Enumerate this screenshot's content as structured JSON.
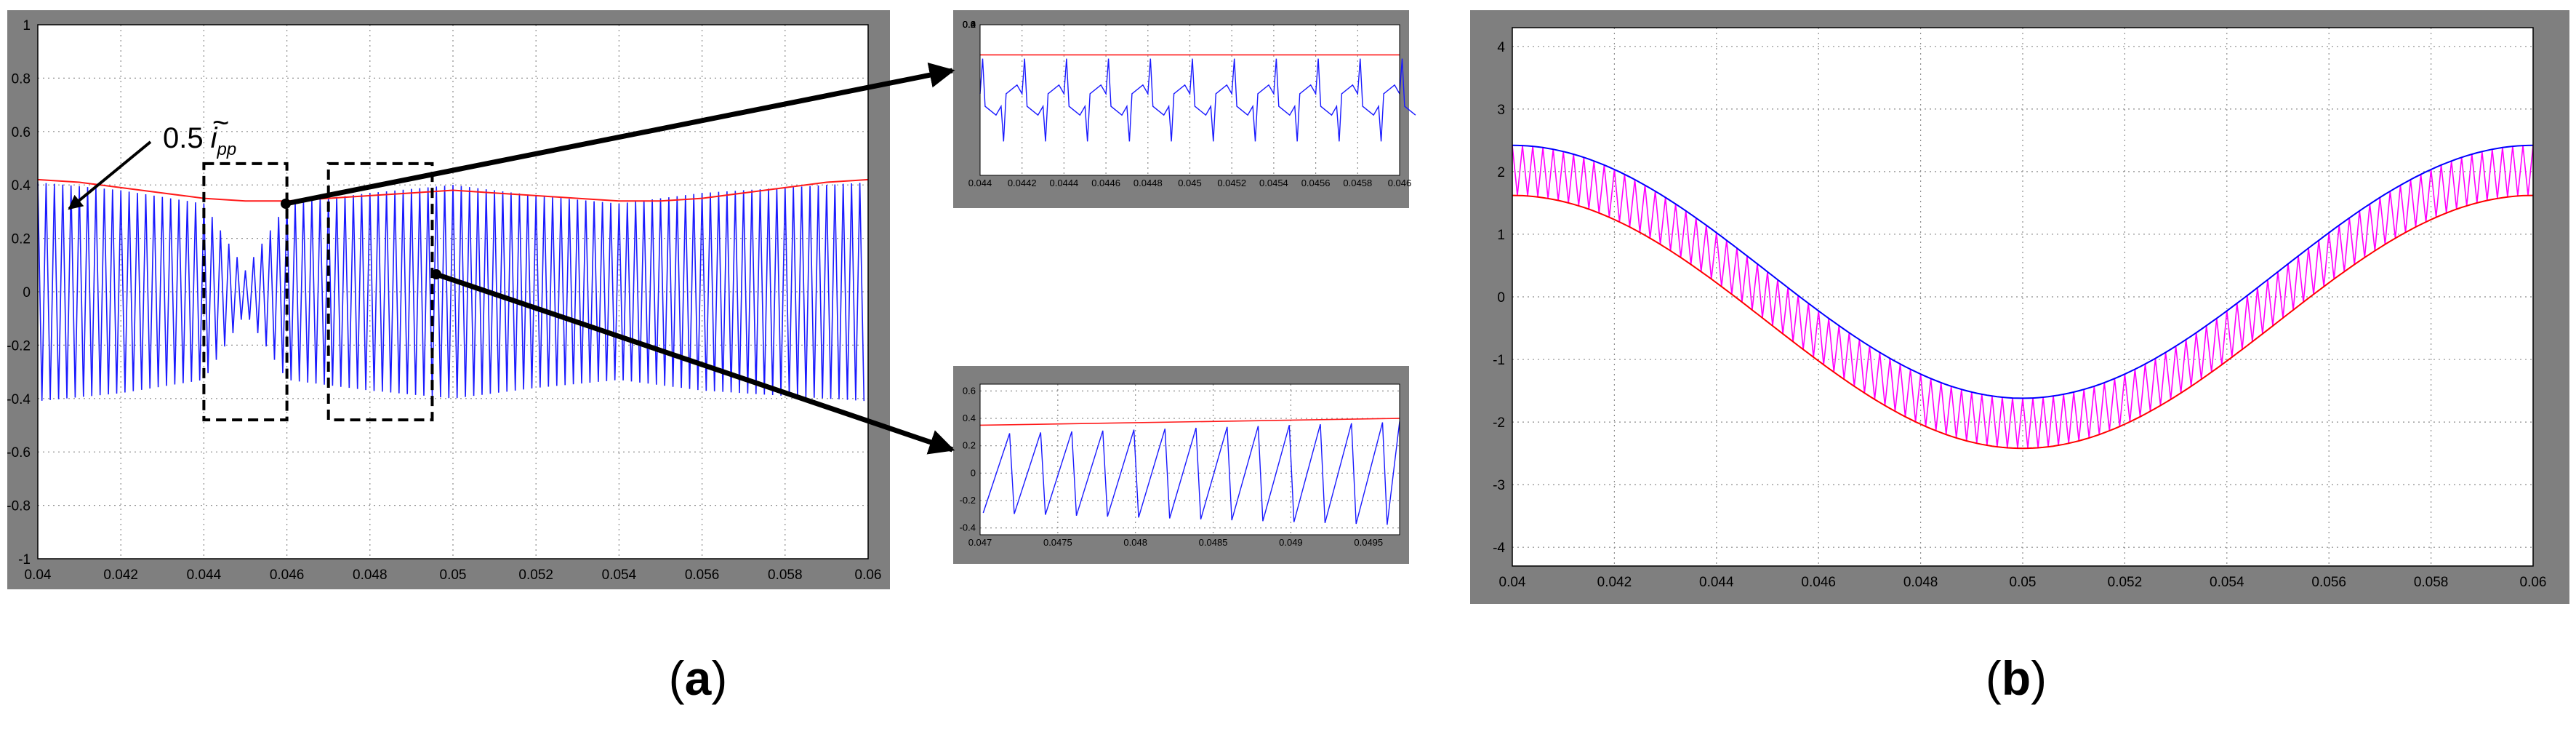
{
  "annotation": {
    "coef": "0.5",
    "symbol": "i",
    "tilde": "~",
    "sub": "pp"
  },
  "panel_labels": {
    "a_open": "(",
    "a": "a",
    "a_close": ")",
    "b_open": "(",
    "b": "b",
    "b_close": ")"
  },
  "colors": {
    "frame": "#7f7f7f",
    "ripple": "#1a1aff",
    "envelope": "#ff1a1a",
    "upper": "#0000ff",
    "lower": "#ff0000",
    "current": "#ff00ff",
    "grid": "#8c8c8c"
  },
  "chart_data": [
    {
      "id": "a-main",
      "type": "line",
      "title": "",
      "xlabel": "",
      "ylabel": "",
      "xlim": [
        0.04,
        0.06
      ],
      "ylim": [
        -1,
        1
      ],
      "grid": true,
      "xticks": [
        "0.04",
        "0.042",
        "0.044",
        "0.046",
        "0.048",
        "0.05",
        "0.052",
        "0.054",
        "0.056",
        "0.058",
        "0.06"
      ],
      "yticks": [
        "1",
        "0.8",
        "0.6",
        "0.4",
        "0.2",
        "0",
        "-0.2",
        "-0.4",
        "-0.6",
        "-0.8",
        "-1"
      ],
      "series": [
        {
          "role": "ripple",
          "x": [
            0.04,
            0.042,
            0.044,
            0.045,
            0.046,
            0.048,
            0.05,
            0.052,
            0.054,
            0.056,
            0.058,
            0.06
          ],
          "amplitude": [
            0.41,
            0.38,
            0.33,
            0.08,
            0.33,
            0.37,
            0.4,
            0.36,
            0.33,
            0.37,
            0.39,
            0.41
          ],
          "switching_period": 0.0002
        },
        {
          "role": "envelope",
          "x": [
            0.04,
            0.041,
            0.042,
            0.043,
            0.044,
            0.045,
            0.046,
            0.047,
            0.048,
            0.049,
            0.05,
            0.051,
            0.052,
            0.053,
            0.054,
            0.055,
            0.056,
            0.057,
            0.058,
            0.059,
            0.06
          ],
          "y": [
            0.42,
            0.41,
            0.39,
            0.37,
            0.35,
            0.34,
            0.34,
            0.35,
            0.36,
            0.37,
            0.38,
            0.37,
            0.36,
            0.35,
            0.34,
            0.34,
            0.35,
            0.37,
            0.39,
            0.41,
            0.42
          ]
        }
      ],
      "zoom_boxes": [
        {
          "x": [
            0.044,
            0.046
          ],
          "y": [
            -0.48,
            0.48
          ]
        },
        {
          "x": [
            0.047,
            0.0495
          ],
          "y": [
            -0.48,
            0.48
          ]
        }
      ]
    },
    {
      "id": "a-zoom1",
      "type": "line",
      "title": "",
      "xlabel": "",
      "ylabel": "",
      "xlim": [
        0.044,
        0.046
      ],
      "ylim": [
        -0.6,
        0.6
      ],
      "grid": true,
      "xticks": [
        "0.044",
        "0.0442",
        "0.0444",
        "0.0446",
        "0.0448",
        "0.045",
        "0.0452",
        "0.0454",
        "0.0456",
        "0.0458",
        "0.046"
      ],
      "yticks": [
        "0.6",
        "0.4",
        "0.2",
        "0",
        "0.2",
        "0.4",
        "0.6"
      ],
      "series": [
        {
          "role": "ripple",
          "amplitude": 0.33,
          "switching_period": 0.0002
        },
        {
          "role": "envelope",
          "x": [
            0.044,
            0.046
          ],
          "y": [
            0.36,
            0.36
          ]
        }
      ]
    },
    {
      "id": "a-zoom2",
      "type": "line",
      "title": "",
      "xlabel": "",
      "ylabel": "",
      "xlim": [
        0.047,
        0.0497
      ],
      "ylim": [
        -0.45,
        0.65
      ],
      "grid": true,
      "xticks": [
        "0.047",
        "0.0475",
        "0.048",
        "0.0485",
        "0.049",
        "0.0495"
      ],
      "yticks": [
        "0.6",
        "0.4",
        "0.2",
        "0",
        "-0.2",
        "-0.4"
      ],
      "series": [
        {
          "role": "ripple",
          "amplitude_start": 0.29,
          "amplitude_end": 0.38,
          "switching_period": 0.0002
        },
        {
          "role": "envelope",
          "x": [
            0.047,
            0.0497
          ],
          "y": [
            0.35,
            0.4
          ]
        }
      ]
    },
    {
      "id": "b",
      "type": "line",
      "title": "",
      "xlabel": "",
      "ylabel": "",
      "xlim": [
        0.04,
        0.06
      ],
      "ylim": [
        -4.3,
        4.3
      ],
      "grid": true,
      "xticks": [
        "0.04",
        "0.042",
        "0.044",
        "0.046",
        "0.048",
        "0.05",
        "0.052",
        "0.054",
        "0.056",
        "0.058",
        "0.06"
      ],
      "yticks": [
        "4",
        "3",
        "2",
        "1",
        "0",
        "-1",
        "-2",
        "-3",
        "-4"
      ],
      "series": [
        {
          "role": "upper",
          "x": [
            0.04,
            0.045,
            0.05,
            0.055,
            0.06
          ],
          "y": [
            2.42,
            0.0,
            -1.62,
            0.0,
            2.42
          ]
        },
        {
          "role": "lower",
          "x": [
            0.04,
            0.045,
            0.05,
            0.055,
            0.06
          ],
          "y": [
            1.62,
            0.0,
            -2.42,
            0.0,
            1.62
          ]
        },
        {
          "role": "current",
          "x_range": [
            0.04,
            0.06
          ],
          "y_range": [
            -2.42,
            2.42
          ],
          "switching_period": 0.0002
        }
      ]
    }
  ]
}
